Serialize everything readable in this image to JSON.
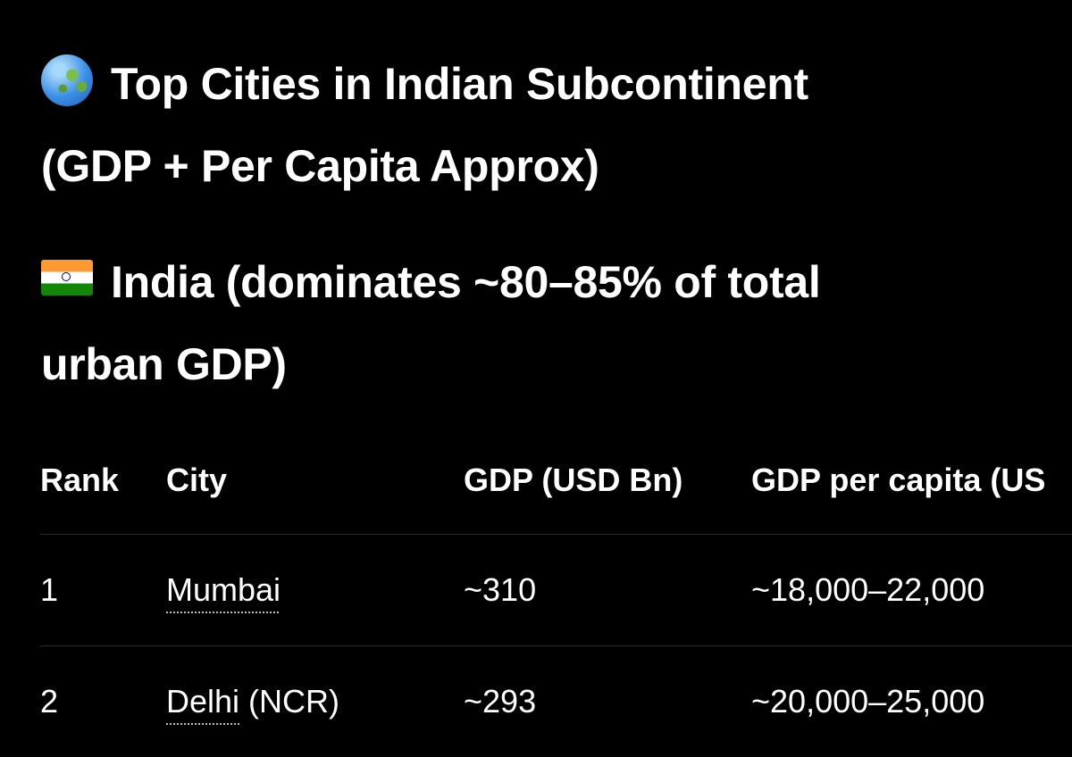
{
  "header": {
    "globe_icon": "globe-asia-australia-icon",
    "title_line1": "Top Cities in Indian Subcontinent",
    "title_line2": "(GDP + Per Capita Approx)"
  },
  "section": {
    "flag_icon": "india-flag-icon",
    "title_line1": "India (dominates ~80–85% of total",
    "title_line2": "urban GDP)"
  },
  "table": {
    "columns": [
      "Rank",
      "City",
      "GDP (USD Bn)",
      "GDP per capita (US"
    ],
    "rows": [
      {
        "rank": "1",
        "city": "Mumbai",
        "city_suffix": "",
        "gdp": "~310",
        "per_capita": "~18,000–22,000"
      },
      {
        "rank": "2",
        "city": "Delhi",
        "city_suffix": " (NCR)",
        "gdp": "~293",
        "per_capita": "~20,000–25,000"
      }
    ]
  }
}
